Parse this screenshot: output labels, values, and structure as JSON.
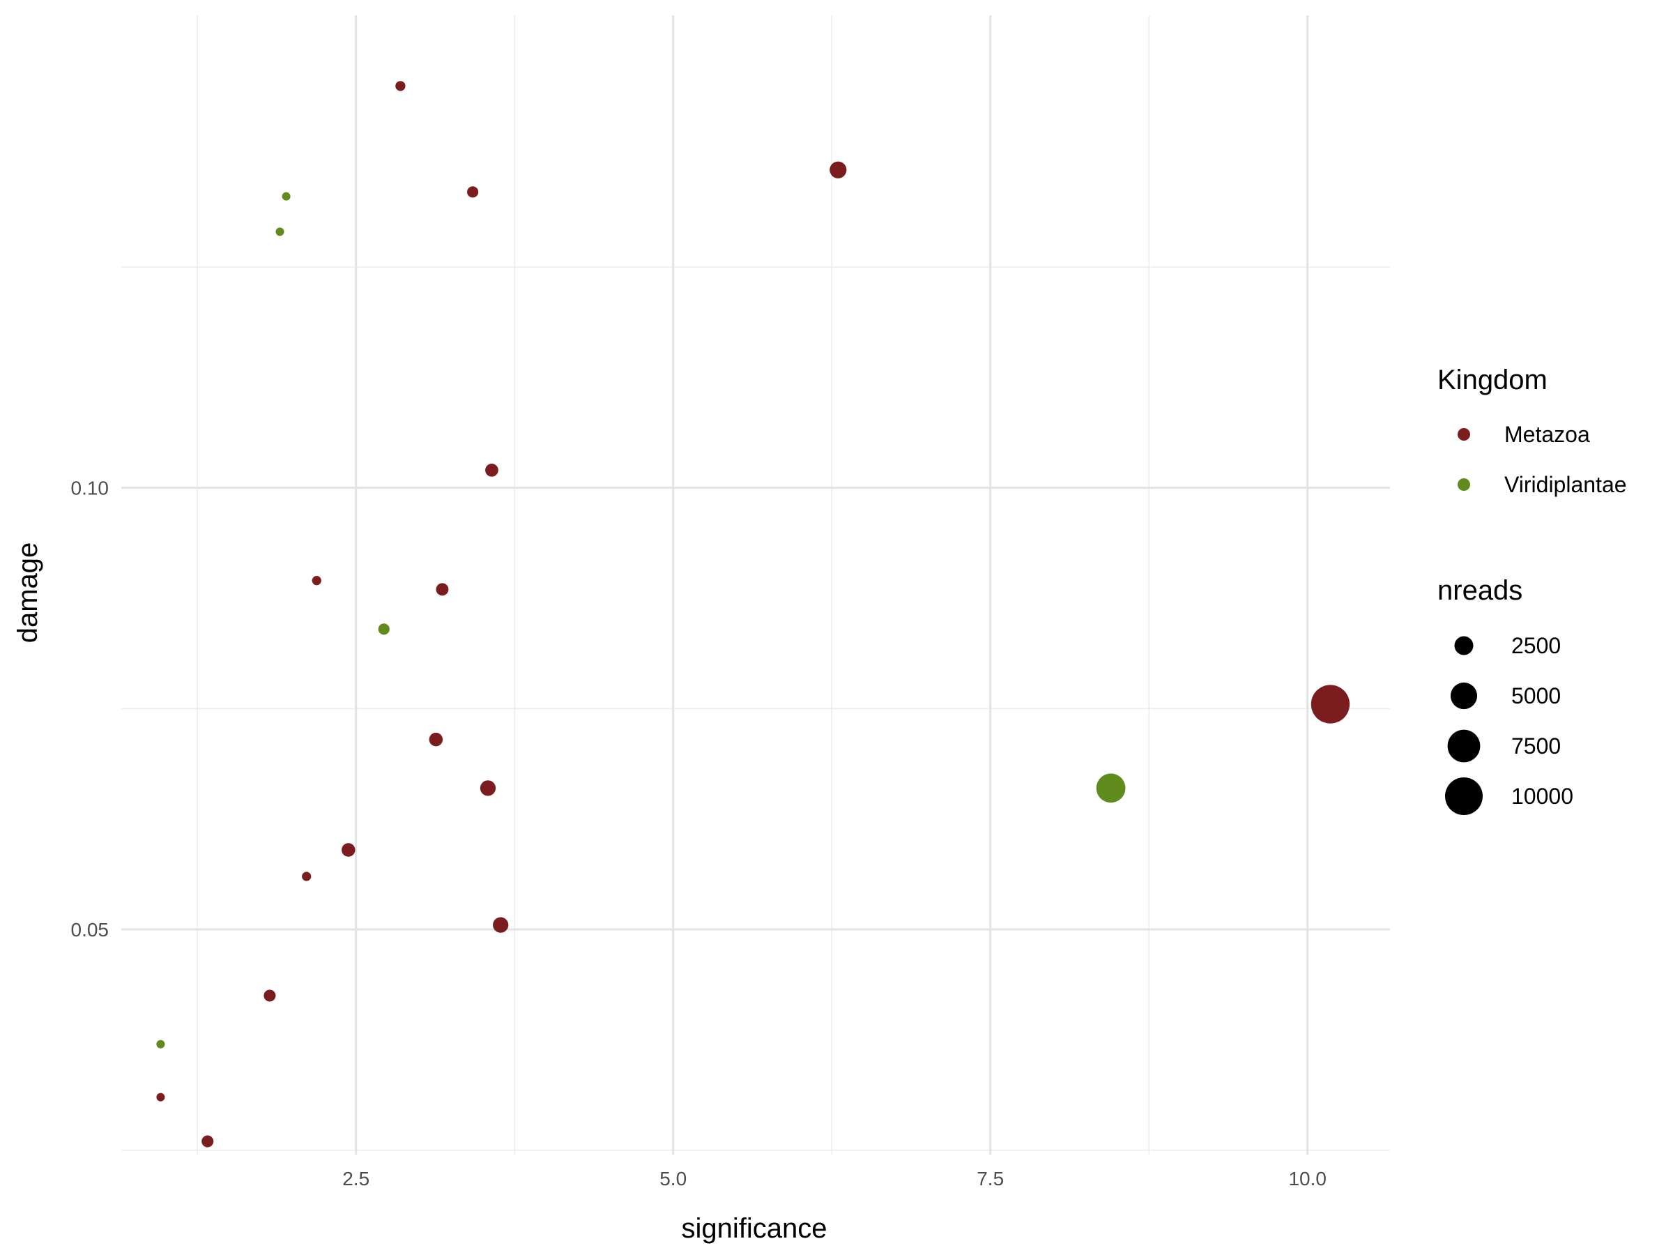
{
  "chart_data": {
    "type": "scatter",
    "xlabel": "significance",
    "ylabel": "damage",
    "xlim": [
      0.65,
      10.65
    ],
    "ylim": [
      0.0245,
      0.1535
    ],
    "x_ticks": [
      2.5,
      5.0,
      7.5,
      10.0
    ],
    "x_tick_labels": [
      "2.5",
      "5.0",
      "7.5",
      "10.0"
    ],
    "x_minor_ticks": [
      1.25,
      3.75,
      6.25,
      8.75
    ],
    "y_ticks": [
      0.05,
      0.1
    ],
    "y_tick_labels": [
      "0.05",
      "0.10"
    ],
    "y_minor_ticks": [
      0.025,
      0.075,
      0.125
    ],
    "grid": true,
    "background": "#ffffff",
    "color_legend": {
      "title": "Kingdom",
      "entries": [
        {
          "name": "Metazoa",
          "color": "#7b1c1f"
        },
        {
          "name": "Viridiplantae",
          "color": "#5f8c1c"
        }
      ]
    },
    "size_legend": {
      "title": "nreads",
      "values": [
        2500,
        5000,
        7500,
        10000
      ],
      "labels": [
        "2500",
        "5000",
        "7500",
        "10000"
      ]
    },
    "points": [
      {
        "x": 2.85,
        "y": 0.1455,
        "kingdom": "Metazoa",
        "nreads": 700
      },
      {
        "x": 3.42,
        "y": 0.1335,
        "kingdom": "Metazoa",
        "nreads": 900
      },
      {
        "x": 6.3,
        "y": 0.136,
        "kingdom": "Metazoa",
        "nreads": 2000
      },
      {
        "x": 1.95,
        "y": 0.133,
        "kingdom": "Viridiplantae",
        "nreads": 300
      },
      {
        "x": 1.9,
        "y": 0.129,
        "kingdom": "Viridiplantae",
        "nreads": 400
      },
      {
        "x": 3.57,
        "y": 0.102,
        "kingdom": "Metazoa",
        "nreads": 1200
      },
      {
        "x": 2.19,
        "y": 0.0895,
        "kingdom": "Metazoa",
        "nreads": 600
      },
      {
        "x": 3.18,
        "y": 0.0885,
        "kingdom": "Metazoa",
        "nreads": 1100
      },
      {
        "x": 2.72,
        "y": 0.084,
        "kingdom": "Viridiplantae",
        "nreads": 900
      },
      {
        "x": 10.18,
        "y": 0.0755,
        "kingdom": "Metazoa",
        "nreads": 10500
      },
      {
        "x": 3.13,
        "y": 0.0715,
        "kingdom": "Metazoa",
        "nreads": 1300
      },
      {
        "x": 8.45,
        "y": 0.066,
        "kingdom": "Viridiplantae",
        "nreads": 6000
      },
      {
        "x": 3.54,
        "y": 0.066,
        "kingdom": "Metazoa",
        "nreads": 1700
      },
      {
        "x": 2.44,
        "y": 0.059,
        "kingdom": "Metazoa",
        "nreads": 1300
      },
      {
        "x": 2.11,
        "y": 0.056,
        "kingdom": "Metazoa",
        "nreads": 600
      },
      {
        "x": 3.64,
        "y": 0.0505,
        "kingdom": "Metazoa",
        "nreads": 1700
      },
      {
        "x": 1.82,
        "y": 0.0425,
        "kingdom": "Metazoa",
        "nreads": 1000
      },
      {
        "x": 0.96,
        "y": 0.037,
        "kingdom": "Viridiplantae",
        "nreads": 500
      },
      {
        "x": 0.96,
        "y": 0.031,
        "kingdom": "Metazoa",
        "nreads": 400
      },
      {
        "x": 1.33,
        "y": 0.026,
        "kingdom": "Metazoa",
        "nreads": 1000
      }
    ]
  }
}
